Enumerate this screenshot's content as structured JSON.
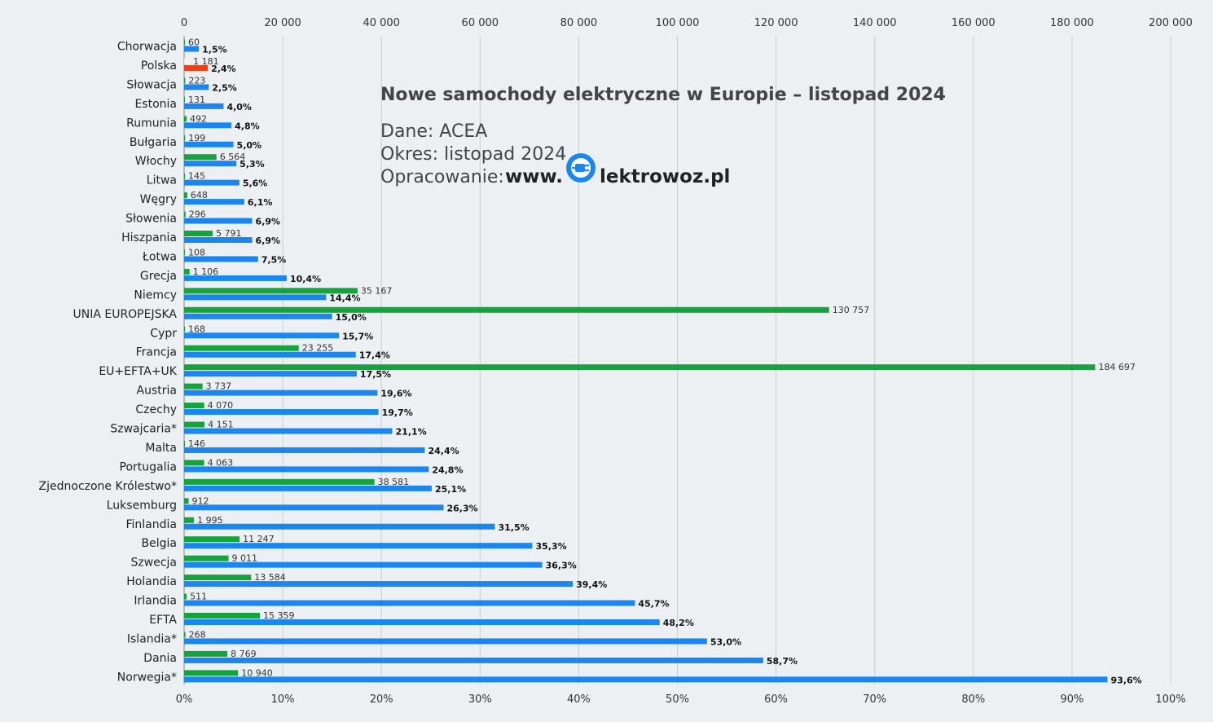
{
  "chart_data": {
    "type": "bar",
    "orientation": "horizontal",
    "title": "Nowe samochody elektryczne w Europie – listopad 2024",
    "categories": [
      "Chorwacja",
      "Polska",
      "Słowacja",
      "Estonia",
      "Rumunia",
      "Bułgaria",
      "Włochy",
      "Litwa",
      "Węgry",
      "Słowenia",
      "Hiszpania",
      "Łotwa",
      "Grecja",
      "Niemcy",
      "UNIA EUROPEJSKA",
      "Cypr",
      "Francja",
      "EU+EFTA+UK",
      "Austria",
      "Czechy",
      "Szwajcaria*",
      "Malta",
      "Portugalia",
      "Zjednoczone Królestwo*",
      "Luksemburg",
      "Finlandia",
      "Belgia",
      "Szwecja",
      "Holandia",
      "Irlandia",
      "EFTA",
      "Islandia*",
      "Dania",
      "Norwegia*"
    ],
    "series": [
      {
        "axis": "top",
        "values": [
          60,
          1181,
          223,
          131,
          492,
          199,
          6564,
          145,
          648,
          296,
          5791,
          108,
          1106,
          35167,
          130757,
          168,
          23255,
          184697,
          3737,
          4070,
          4151,
          146,
          4063,
          38581,
          912,
          1995,
          11247,
          9011,
          13584,
          511,
          15359,
          268,
          8769,
          10940
        ],
        "labels": [
          "60",
          "1 181",
          "223",
          "131",
          "492",
          "199",
          "6 564",
          "145",
          "648",
          "296",
          "5 791",
          "108",
          "1 106",
          "35 167",
          "130 757",
          "168",
          "23 255",
          "184 697",
          "3 737",
          "4 070",
          "4 151",
          "146",
          "4 063",
          "38 581",
          "912",
          "1 995",
          "11 247",
          "9 011",
          "13 584",
          "511",
          "15 359",
          "268",
          "8 769",
          "10 940"
        ]
      },
      {
        "axis": "bottom",
        "values": [
          1.5,
          2.4,
          2.5,
          4.0,
          4.8,
          5.0,
          5.3,
          5.6,
          6.1,
          6.9,
          6.9,
          7.5,
          10.4,
          14.4,
          15.0,
          15.7,
          17.4,
          17.5,
          19.6,
          19.7,
          21.1,
          24.4,
          24.8,
          25.1,
          26.3,
          31.5,
          35.3,
          36.3,
          39.4,
          45.7,
          48.2,
          53.0,
          58.7,
          93.6
        ],
        "labels": [
          "1,5%",
          "2,4%",
          "2,5%",
          "4,0%",
          "4,8%",
          "5,0%",
          "5,3%",
          "5,6%",
          "6,1%",
          "6,9%",
          "6,9%",
          "7,5%",
          "10,4%",
          "14,4%",
          "15,0%",
          "15,7%",
          "17,4%",
          "17,5%",
          "19,6%",
          "19,7%",
          "21,1%",
          "24,4%",
          "24,8%",
          "25,1%",
          "26,3%",
          "31,5%",
          "35,3%",
          "36,3%",
          "39,4%",
          "45,7%",
          "48,2%",
          "53,0%",
          "58,7%",
          "93,6%"
        ]
      }
    ],
    "top_axis": {
      "min": 0,
      "max": 200000,
      "tick_labels": [
        "0",
        "20 000",
        "40 000",
        "60 000",
        "80 000",
        "100 000",
        "120 000",
        "140 000",
        "160 000",
        "180 000",
        "200 000"
      ]
    },
    "bottom_axis": {
      "min": 0,
      "max": 100,
      "tick_labels": [
        "0%",
        "10%",
        "20%",
        "30%",
        "40%",
        "50%",
        "60%",
        "70%",
        "80%",
        "90%",
        "100%"
      ]
    },
    "grid": true,
    "highlight_category": "Polska",
    "colors": {
      "count": "#14a33c",
      "share": "#1a86f0",
      "highlight_count": "#f2f2f2",
      "highlight_share": "#e8401c",
      "grid": "#c8cdd2",
      "background": "#ecf0f3"
    }
  },
  "info": {
    "source": "Dane: ACEA",
    "period": "Okres: listopad 2024",
    "prepared_label": "Opracowanie:",
    "brand_prefix": "www.",
    "brand_suffix": "lektrowoz.pl"
  }
}
